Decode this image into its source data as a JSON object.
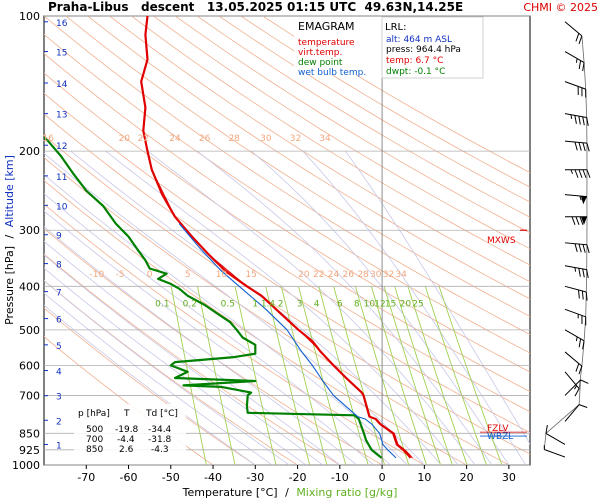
{
  "header": {
    "title": "Praha-Libus   descent   13.05.2025 01:15 UTC  49.63N,14.25E",
    "copyright": "CHMI © 2025"
  },
  "colors": {
    "temperature": "#e00000",
    "virt_temp": "#e00000",
    "dew_point": "#008000",
    "wet_bulb": "#1060d0",
    "dry_adiabat": "#f0b090",
    "moist_adiabat": "#c8c8e8",
    "mixing_ratio": "#a0d050",
    "grid": "#b0b0b0"
  },
  "legend": {
    "title": "EMAGRAM",
    "items": [
      {
        "label": "temperature",
        "color": "#e00000"
      },
      {
        "label": "virt.temp.",
        "color": "#e00000"
      },
      {
        "label": "dew point",
        "color": "#008000"
      },
      {
        "label": "wet bulb temp.",
        "color": "#1060d0"
      }
    ]
  },
  "lrl": {
    "title": "LRL:",
    "alt": "alt: 464 m ASL",
    "press": "press: 964.4 hPa",
    "temp": "temp: 6.7 °C",
    "dwpt": "dwpt: -0.1 °C"
  },
  "table": {
    "headers": [
      "p [hPa]",
      "T",
      "Td [°C]"
    ],
    "rows": [
      [
        "500",
        "-19.8",
        "-34.4"
      ],
      [
        "700",
        "-4.4",
        "-31.8"
      ],
      [
        "850",
        "2.6",
        "-4.3"
      ]
    ]
  },
  "markers": {
    "mxws": "MXWS",
    "fzlv": "FZLV",
    "wbzl": "WBZL"
  },
  "chart_data": {
    "type": "line",
    "xlabel": "Temperature [°C]",
    "xlabel_sep": "/",
    "xlabel2": "Mixing ratio [g/kg]",
    "ylabel": "Pressure [hPa]",
    "ylabel_sep": "/",
    "ylabel2": "Altitude [km]",
    "xlim": [
      -80,
      35
    ],
    "ylim": [
      1000,
      100
    ],
    "y_scale": "log",
    "x_ticks": [
      -70,
      -60,
      -50,
      -40,
      -30,
      -20,
      -10,
      0,
      10,
      20,
      30
    ],
    "pressure_ticks": [
      100,
      200,
      300,
      400,
      500,
      600,
      700,
      850,
      925,
      1000
    ],
    "altitude_ticks": [
      {
        "km": "1",
        "p": 900
      },
      {
        "km": "2",
        "p": 795
      },
      {
        "km": "3",
        "p": 701
      },
      {
        "km": "4",
        "p": 616
      },
      {
        "km": "5",
        "p": 540
      },
      {
        "km": "6",
        "p": 472
      },
      {
        "km": "7",
        "p": 411
      },
      {
        "km": "8",
        "p": 356
      },
      {
        "km": "9",
        "p": 307
      },
      {
        "km": "10",
        "p": 264
      },
      {
        "km": "11",
        "p": 227
      },
      {
        "km": "12",
        "p": 194
      },
      {
        "km": "13",
        "p": 165
      },
      {
        "km": "14",
        "p": 141
      },
      {
        "km": "15",
        "p": 120
      },
      {
        "km": "16",
        "p": 103
      }
    ],
    "mixing_ratio_labels": [
      {
        "text": "0.1",
        "t": -52,
        "p": 450
      },
      {
        "text": "0.2",
        "t": -45.5,
        "p": 450
      },
      {
        "text": "0.5",
        "t": -36.5,
        "p": 450
      },
      {
        "text": "1",
        "t": -30,
        "p": 450
      },
      {
        "text": "1.4",
        "t": -27,
        "p": 450
      },
      {
        "text": "2",
        "t": -24,
        "p": 450
      },
      {
        "text": "3",
        "t": -19.5,
        "p": 450
      },
      {
        "text": "4",
        "t": -15.5,
        "p": 450
      },
      {
        "text": "6",
        "t": -10,
        "p": 450
      },
      {
        "text": "8",
        "t": -6,
        "p": 450
      },
      {
        "text": "10",
        "t": -3,
        "p": 450
      },
      {
        "text": "12",
        "t": -0.5,
        "p": 450
      },
      {
        "text": "15",
        "t": 2,
        "p": 450
      },
      {
        "text": "20",
        "t": 5.5,
        "p": 450
      },
      {
        "text": "25",
        "t": 8.5,
        "p": 450
      }
    ],
    "theta_labels_row1": [
      {
        "text": "16",
        "t": -79,
        "p": 192
      },
      {
        "text": "20",
        "t": -61,
        "p": 192
      },
      {
        "text": "22",
        "t": -56.5,
        "p": 192
      },
      {
        "text": "24",
        "t": -49,
        "p": 192
      },
      {
        "text": "26",
        "t": -42,
        "p": 192
      },
      {
        "text": "28",
        "t": -35,
        "p": 192
      },
      {
        "text": "30",
        "t": -27.5,
        "p": 192
      },
      {
        "text": "32",
        "t": -20.5,
        "p": 192
      },
      {
        "text": "34",
        "t": -13.5,
        "p": 192
      }
    ],
    "theta_labels_row2": [
      {
        "text": "-10",
        "t": -67.5,
        "p": 385
      },
      {
        "text": "-5",
        "t": -62,
        "p": 385
      },
      {
        "text": "0",
        "t": -55,
        "p": 385
      },
      {
        "text": "5",
        "t": -46,
        "p": 385
      },
      {
        "text": "10",
        "t": -38,
        "p": 385
      },
      {
        "text": "15",
        "t": -31,
        "p": 385
      },
      {
        "text": "20",
        "t": -18.5,
        "p": 385
      },
      {
        "text": "22",
        "t": -15,
        "p": 385
      },
      {
        "text": "24",
        "t": -11.5,
        "p": 385
      },
      {
        "text": "26",
        "t": -8,
        "p": 385
      },
      {
        "text": "28",
        "t": -4.5,
        "p": 385
      },
      {
        "text": "30",
        "t": -1.5,
        "p": 385
      },
      {
        "text": "32",
        "t": 1.5,
        "p": 385
      },
      {
        "text": "34",
        "t": 4.5,
        "p": 385
      }
    ],
    "series": [
      {
        "name": "temperature",
        "key": "temperature",
        "points": [
          [
            6.7,
            964
          ],
          [
            6.2,
            950
          ],
          [
            5.0,
            925
          ],
          [
            3.5,
            900
          ],
          [
            2.6,
            850
          ],
          [
            -0.5,
            810
          ],
          [
            -1.5,
            790
          ],
          [
            -3.0,
            780
          ],
          [
            -4.4,
            700
          ],
          [
            -4.8,
            690
          ],
          [
            -8.5,
            640
          ],
          [
            -11.5,
            600
          ],
          [
            -14.5,
            560
          ],
          [
            -16.5,
            530
          ],
          [
            -19.8,
            500
          ],
          [
            -24,
            460
          ],
          [
            -28.5,
            420
          ],
          [
            -32,
            400
          ],
          [
            -37,
            370
          ],
          [
            -41,
            340
          ],
          [
            -45,
            310
          ],
          [
            -49,
            280
          ],
          [
            -52,
            250
          ],
          [
            -54.5,
            220
          ],
          [
            -55.5,
            200
          ],
          [
            -56.5,
            180
          ],
          [
            -56,
            160
          ],
          [
            -57,
            140
          ],
          [
            -55.5,
            125
          ],
          [
            -56,
            110
          ],
          [
            -55.5,
            100
          ]
        ]
      },
      {
        "name": "virt.temp.",
        "key": "virt_temp",
        "points": [
          [
            7.2,
            964
          ],
          [
            6.6,
            950
          ],
          [
            5.4,
            925
          ],
          [
            3.8,
            900
          ],
          [
            2.9,
            850
          ],
          [
            -0.3,
            810
          ],
          [
            -1.3,
            790
          ],
          [
            -2.9,
            780
          ],
          [
            -4.3,
            700
          ],
          [
            -8.4,
            640
          ],
          [
            -11.4,
            600
          ],
          [
            -14.4,
            560
          ],
          [
            -19.7,
            500
          ],
          [
            -28.4,
            420
          ],
          [
            -32,
            400
          ],
          [
            -41,
            340
          ],
          [
            -49,
            280
          ],
          [
            -54.5,
            220
          ]
        ]
      },
      {
        "name": "dew point",
        "key": "dew_point",
        "points": [
          [
            -0.1,
            964
          ],
          [
            -1.0,
            950
          ],
          [
            -2.5,
            925
          ],
          [
            -3.8,
            880
          ],
          [
            -4.3,
            850
          ],
          [
            -4.8,
            825
          ],
          [
            -5.5,
            790
          ],
          [
            -6.5,
            775
          ],
          [
            -31.8,
            765
          ],
          [
            -32,
            740
          ],
          [
            -31.8,
            700
          ],
          [
            -31,
            690
          ],
          [
            -38,
            670
          ],
          [
            -47,
            665
          ],
          [
            -30,
            650
          ],
          [
            -49,
            640
          ],
          [
            -46,
            620
          ],
          [
            -50,
            600
          ],
          [
            -49,
            590
          ],
          [
            -35,
            575
          ],
          [
            -30,
            565
          ],
          [
            -30,
            540
          ],
          [
            -33,
            520
          ],
          [
            -34.4,
            500
          ],
          [
            -36,
            480
          ],
          [
            -39,
            460
          ],
          [
            -42,
            440
          ],
          [
            -46,
            420
          ],
          [
            -48,
            405
          ],
          [
            -50,
            395
          ],
          [
            -53,
            385
          ],
          [
            -51,
            375
          ],
          [
            -55,
            365
          ],
          [
            -56,
            350
          ],
          [
            -58,
            330
          ],
          [
            -60,
            310
          ],
          [
            -63,
            290
          ],
          [
            -66,
            265
          ],
          [
            -70,
            245
          ],
          [
            -73,
            225
          ],
          [
            -76,
            205
          ],
          [
            -79,
            190
          ],
          [
            -82,
            180
          ]
        ]
      },
      {
        "name": "wet bulb temp.",
        "key": "wet_bulb",
        "points": [
          [
            3.3,
            964
          ],
          [
            2.6,
            950
          ],
          [
            1.3,
            925
          ],
          [
            0.2,
            900
          ],
          [
            -0.6,
            850
          ],
          [
            -2.5,
            810
          ],
          [
            -4,
            790
          ],
          [
            -5.8,
            780
          ],
          [
            -11.5,
            700
          ],
          [
            -14,
            650
          ],
          [
            -16.5,
            600
          ],
          [
            -19,
            560
          ],
          [
            -22.5,
            500
          ],
          [
            -27.5,
            450
          ],
          [
            -32.5,
            410
          ],
          [
            -38,
            370
          ],
          [
            -43,
            330
          ],
          [
            -48,
            290
          ]
        ]
      }
    ],
    "wind_barbs": [
      {
        "p": 103,
        "dir": 310,
        "kt": 20
      },
      {
        "p": 120,
        "dir": 300,
        "kt": 25
      },
      {
        "p": 140,
        "dir": 290,
        "kt": 30
      },
      {
        "p": 165,
        "dir": 280,
        "kt": 45
      },
      {
        "p": 190,
        "dir": 275,
        "kt": 40
      },
      {
        "p": 220,
        "dir": 270,
        "kt": 45
      },
      {
        "p": 250,
        "dir": 275,
        "kt": 55
      },
      {
        "p": 280,
        "dir": 270,
        "kt": 80
      },
      {
        "p": 320,
        "dir": 275,
        "kt": 40
      },
      {
        "p": 360,
        "dir": 280,
        "kt": 35
      },
      {
        "p": 400,
        "dir": 285,
        "kt": 30
      },
      {
        "p": 450,
        "dir": 290,
        "kt": 25
      },
      {
        "p": 500,
        "dir": 300,
        "kt": 25
      },
      {
        "p": 560,
        "dir": 310,
        "kt": 20
      },
      {
        "p": 620,
        "dir": 320,
        "kt": 15
      },
      {
        "p": 700,
        "dir": 225,
        "kt": 10
      },
      {
        "p": 800,
        "dir": 220,
        "kt": 10
      },
      {
        "p": 900,
        "dir": 120,
        "kt": 10
      },
      {
        "p": 960,
        "dir": 110,
        "kt": 5
      }
    ],
    "levels": {
      "mxws_p": 300,
      "fzlv_p": 845,
      "wbzl_p": 862
    }
  }
}
